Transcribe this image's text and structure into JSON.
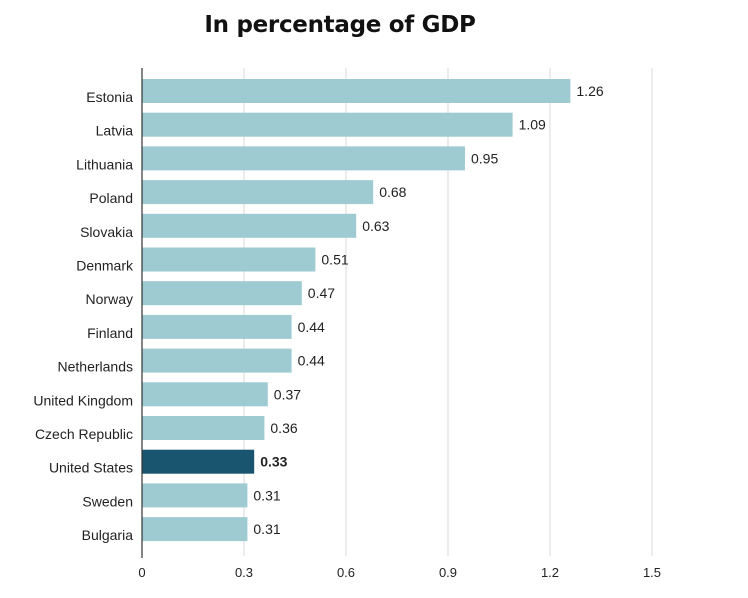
{
  "chart_data": {
    "type": "bar",
    "orientation": "horizontal",
    "title": "In percentage of GDP",
    "categories": [
      "Estonia",
      "Latvia",
      "Lithuania",
      "Poland",
      "Slovakia",
      "Denmark",
      "Norway",
      "Finland",
      "Netherlands",
      "United Kingdom",
      "Czech Republic",
      "United States",
      "Sweden",
      "Bulgaria"
    ],
    "values": [
      1.26,
      1.09,
      0.95,
      0.68,
      0.63,
      0.51,
      0.47,
      0.44,
      0.44,
      0.37,
      0.36,
      0.33,
      0.31,
      0.31
    ],
    "value_labels": [
      "1.26",
      "1.09",
      "0.95",
      "0.68",
      "0.63",
      "0.51",
      "0.47",
      "0.44",
      "0.44",
      "0.37",
      "0.36",
      "0.33",
      "0.31",
      "0.31"
    ],
    "highlight": "United States",
    "xlim": [
      0,
      1.5
    ],
    "xticks": [
      0,
      0.3,
      0.6,
      0.9,
      1.2,
      1.5
    ],
    "xtick_labels": [
      "0",
      "0.3",
      "0.6",
      "0.9",
      "1.2",
      "1.5"
    ],
    "xlabel": "",
    "ylabel": "",
    "grid": true,
    "colors": {
      "bar": "#9ecbd1",
      "highlight": "#1a5570",
      "grid": "#d9d9d9",
      "axis": "#333333"
    }
  }
}
